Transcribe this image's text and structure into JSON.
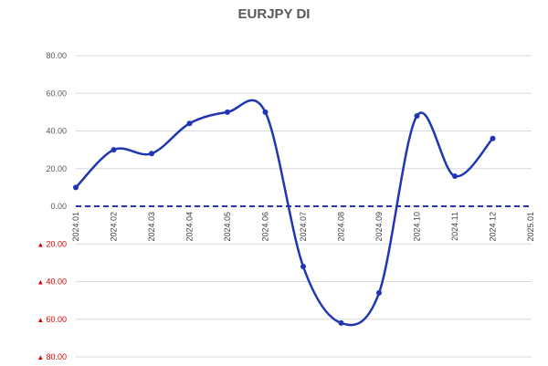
{
  "chart_data": {
    "type": "line",
    "title": "EURJPY DI",
    "xlabel": "",
    "ylabel": "",
    "x": [
      "2024.01",
      "2024.02",
      "2024.03",
      "2024.04",
      "2024.05",
      "2024.06",
      "2024.07",
      "2024.08",
      "2024.09",
      "2024.10",
      "2024.11",
      "2024.12"
    ],
    "x_tick_labels": [
      "2024.01",
      "2024.02",
      "2024.03",
      "2024.04",
      "2024.05",
      "2024.06",
      "2024.07",
      "2024.08",
      "2024.09",
      "2024.10",
      "2024.11",
      "2024.12",
      "2025.01"
    ],
    "series": [
      {
        "values": [
          10,
          30,
          28,
          44,
          50,
          50,
          -32,
          -62,
          -46,
          48,
          16,
          36
        ],
        "color": "#1f35b4"
      }
    ],
    "ylim": [
      -80,
      80
    ],
    "y_ticks": [
      {
        "value": 80,
        "label": "80.00",
        "negative": false
      },
      {
        "value": 60,
        "label": "60.00",
        "negative": false
      },
      {
        "value": 40,
        "label": "40.00",
        "negative": false
      },
      {
        "value": 20,
        "label": "20.00",
        "negative": false
      },
      {
        "value": 0,
        "label": "0.00",
        "negative": false
      },
      {
        "value": -20,
        "label": "20.00",
        "negative": true
      },
      {
        "value": -40,
        "label": "40.00",
        "negative": true
      },
      {
        "value": -60,
        "label": "60.00",
        "negative": true
      },
      {
        "value": -80,
        "label": "80.00",
        "negative": true
      }
    ],
    "negative_marker": "▲",
    "zero_line": {
      "style": "dashed",
      "color": "#1f35b4"
    },
    "grid": true,
    "line_smooth": true,
    "colors": {
      "line": "#1f35b4",
      "negative_label": "#e00000",
      "positive_label": "#595959",
      "grid": "#d9d9d9"
    }
  }
}
